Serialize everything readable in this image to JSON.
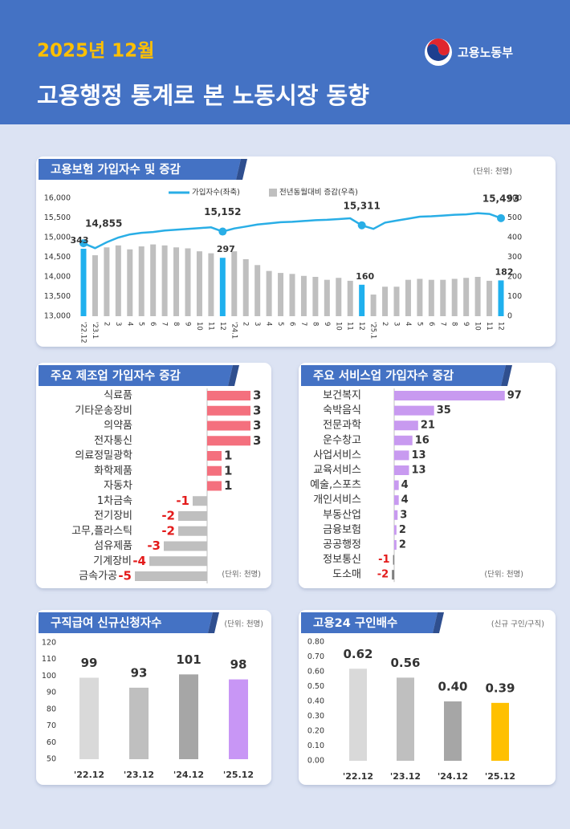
{
  "header": {
    "date": "2025년 12월",
    "title": "고용행정 통계로 본 노동시장 동향",
    "ministry": "고용노동부"
  },
  "chart_data": [
    {
      "type": "combo",
      "title": "고용보험 가입자수 및 증감",
      "unit_note": "(단위: 천명)",
      "categories": [
        "'22.12",
        "'23.1",
        "2",
        "3",
        "4",
        "5",
        "6",
        "7",
        "8",
        "9",
        "10",
        "11",
        "12",
        "'24.1",
        "2",
        "3",
        "4",
        "5",
        "6",
        "7",
        "8",
        "9",
        "10",
        "11",
        "12",
        "'25.1",
        "2",
        "3",
        "4",
        "5",
        "6",
        "7",
        "8",
        "9",
        "10",
        "11",
        "12"
      ],
      "series": [
        {
          "name": "가입자수(좌축)",
          "kind": "line",
          "color": "#29aee6",
          "values": [
            14855,
            14730,
            14880,
            15000,
            15080,
            15120,
            15140,
            15180,
            15200,
            15220,
            15240,
            15260,
            15152,
            15230,
            15280,
            15330,
            15360,
            15390,
            15400,
            15420,
            15440,
            15450,
            15470,
            15490,
            15311,
            15220,
            15380,
            15430,
            15480,
            15530,
            15540,
            15560,
            15580,
            15590,
            15620,
            15600,
            15493
          ],
          "value_labels": [
            "14,855",
            null,
            null,
            null,
            null,
            null,
            null,
            null,
            null,
            null,
            null,
            null,
            "15,152",
            null,
            null,
            null,
            null,
            null,
            null,
            null,
            null,
            null,
            null,
            null,
            "15,311",
            null,
            null,
            null,
            null,
            null,
            null,
            null,
            null,
            null,
            null,
            null,
            "15,493"
          ]
        },
        {
          "name": "전년동월대비 증감(우측)",
          "kind": "bar",
          "axis": "y2",
          "color": "#bfbfbf",
          "values": [
            343,
            310,
            350,
            360,
            340,
            355,
            365,
            360,
            350,
            345,
            330,
            320,
            297,
            330,
            290,
            260,
            230,
            220,
            215,
            205,
            200,
            185,
            195,
            180,
            160,
            110,
            150,
            150,
            185,
            190,
            185,
            185,
            190,
            195,
            200,
            180,
            182
          ]
        }
      ],
      "highlight": [
        0,
        12,
        24,
        36
      ],
      "highlight_color": "#1fb0ee",
      "ylim": [
        13000,
        16000
      ],
      "yticks": [
        {
          "value": 13000,
          "label": "13,000"
        },
        {
          "value": 13500,
          "label": "13,500"
        },
        {
          "value": 14000,
          "label": "14,000"
        },
        {
          "value": 14500,
          "label": "14,500"
        },
        {
          "value": 15000,
          "label": "15,000"
        },
        {
          "value": 15500,
          "label": "15,500"
        },
        {
          "value": 16000,
          "label": "16,000"
        }
      ],
      "y2lim": [
        0,
        600
      ],
      "y2ticks": [
        0,
        100,
        200,
        300,
        400,
        500,
        600
      ],
      "grid": false
    },
    {
      "type": "hbar",
      "title": "주요 제조업 가입자수 증감",
      "unit_note": "(단위: 천명)",
      "categories": [
        "식료품",
        "기타운송장비",
        "의약품",
        "전자통신",
        "의료정밀광학",
        "화학제품",
        "자동차",
        "1차금속",
        "전기장비",
        "고무,플라스틱",
        "섬유제품",
        "기계장비",
        "금속가공"
      ],
      "values": [
        3,
        3,
        3,
        3,
        1,
        1,
        1,
        -1,
        -2,
        -2,
        -3,
        -4,
        -5
      ],
      "color": "#f4707e",
      "negative_color": "#bfbfbf",
      "label_color": "#333333",
      "negative_label_color": "#e31b1b"
    },
    {
      "type": "hbar",
      "title": "주요 서비스업 가입자수 증감",
      "unit_note": "(단위: 천명)",
      "categories": [
        "보건복지",
        "숙박음식",
        "전문과학",
        "운수창고",
        "사업서비스",
        "교육서비스",
        "예술,스포츠",
        "개인서비스",
        "부동산업",
        "금융보험",
        "공공행정",
        "정보통신",
        "도소매"
      ],
      "values": [
        97,
        35,
        21,
        16,
        13,
        13,
        4,
        4,
        3,
        2,
        2,
        -1,
        -2
      ],
      "color": "#c89af0",
      "negative_color": "#7f7f7f",
      "label_color": "#333333",
      "negative_label_color": "#e31b1b"
    },
    {
      "type": "bar",
      "title": "구직급여 신규신청자수",
      "unit_note": "(단위: 천명)",
      "categories": [
        "'22.12",
        "'23.12",
        "'24.12",
        "'25.12"
      ],
      "values": [
        99,
        93,
        101,
        98
      ],
      "colors": [
        "#d9d9d9",
        "#bfbfbf",
        "#a6a6a6",
        "#c896f5"
      ],
      "ylim": [
        50,
        120
      ],
      "yticks": [
        50,
        60,
        70,
        80,
        90,
        100,
        110,
        120
      ],
      "grid": false
    },
    {
      "type": "bar",
      "title": "고용24 구인배수",
      "unit_note": "(신규 구인/구직)",
      "categories": [
        "'22.12",
        "'23.12",
        "'24.12",
        "'25.12"
      ],
      "values": [
        0.62,
        0.56,
        0.4,
        0.39
      ],
      "value_labels": [
        "0.62",
        "0.56",
        "0.40",
        "0.39"
      ],
      "colors": [
        "#d9d9d9",
        "#bfbfbf",
        "#a6a6a6",
        "#ffc000"
      ],
      "ylim": [
        0,
        0.8
      ],
      "yticks": [
        {
          "value": 0,
          "label": "0.00"
        },
        {
          "value": 0.1,
          "label": "0.10"
        },
        {
          "value": 0.2,
          "label": "0.20"
        },
        {
          "value": 0.3,
          "label": "0.30"
        },
        {
          "value": 0.4,
          "label": "0.40"
        },
        {
          "value": 0.5,
          "label": "0.50"
        },
        {
          "value": 0.6,
          "label": "0.60"
        },
        {
          "value": 0.7,
          "label": "0.70"
        },
        {
          "value": 0.8,
          "label": "0.80"
        }
      ],
      "grid": false
    }
  ]
}
